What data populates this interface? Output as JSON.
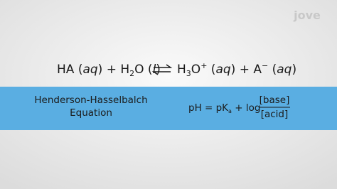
{
  "logo": "jove",
  "equation": {
    "left": [
      "HA (",
      "aq",
      ") + H",
      "2",
      "O (",
      "l",
      ")"
    ],
    "right": [
      "H",
      "3",
      "O",
      "+",
      " (",
      "aq",
      ") + A",
      "−",
      " (",
      "aq",
      ")"
    ]
  },
  "band": {
    "name": [
      "Henderson-Hasselbalch",
      "Equation"
    ],
    "formula": {
      "lhs": "pH = pK",
      "subscript": "a",
      "operator": " + log",
      "numerator": "[base]",
      "denominator": "[acid]"
    }
  }
}
